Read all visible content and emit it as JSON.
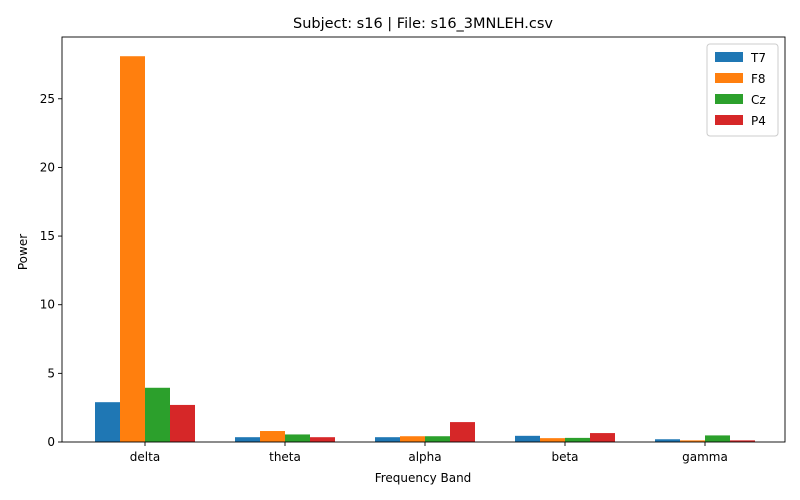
{
  "chart_data": {
    "type": "bar",
    "title": "Subject: s16 | File: s16_3MNLEH.csv",
    "xlabel": "Frequency Band",
    "ylabel": "Power",
    "categories": [
      "delta",
      "theta",
      "alpha",
      "beta",
      "gamma"
    ],
    "ylim": [
      0,
      29.5
    ],
    "yticks": [
      0,
      5,
      10,
      15,
      20,
      25
    ],
    "legend_position": "top-right",
    "grid": false,
    "series": [
      {
        "name": "T7",
        "color": "#1f77b4",
        "values": [
          2.9,
          0.35,
          0.35,
          0.45,
          0.2
        ]
      },
      {
        "name": "F8",
        "color": "#ff7f0e",
        "values": [
          28.1,
          0.8,
          0.42,
          0.28,
          0.12
        ]
      },
      {
        "name": "Cz",
        "color": "#2ca02c",
        "values": [
          3.95,
          0.55,
          0.42,
          0.3,
          0.48
        ]
      },
      {
        "name": "P4",
        "color": "#d62728",
        "values": [
          2.7,
          0.35,
          1.45,
          0.65,
          0.12
        ]
      }
    ]
  }
}
